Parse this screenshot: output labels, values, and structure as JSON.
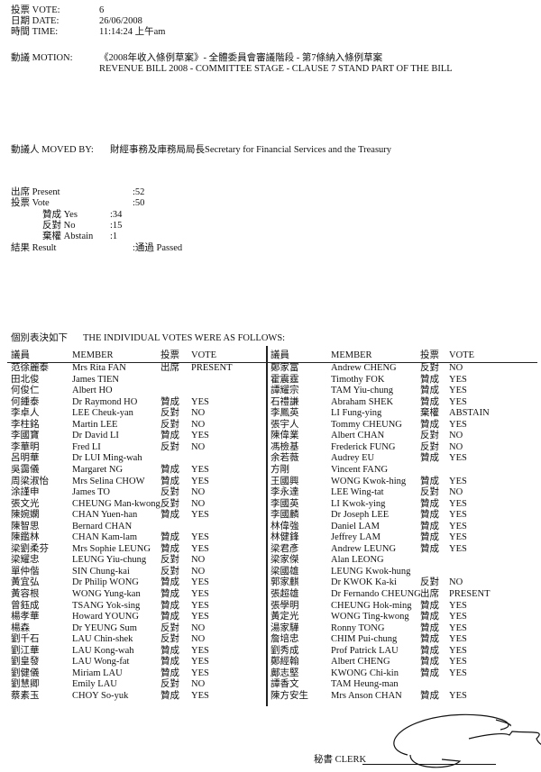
{
  "header": {
    "vote_label": "投票 VOTE:",
    "vote_value": "6",
    "date_label": "日期 DATE:",
    "date_value": "26/06/2008",
    "time_label": "時間 TIME:",
    "time_value": "11:14:24 上午am",
    "motion_label": "動議 MOTION:",
    "motion_cn": "《2008年收入條例草案》- 全體委員會審議階段 - 第7條納入條例草案",
    "motion_en": "REVENUE BILL 2008 - COMMITTEE STAGE - CLAUSE 7 STAND PART OF THE BILL",
    "moved_by_label": "動議人 MOVED BY:",
    "moved_by_value": "財經事務及庫務局局長Secretary for Financial Services and the Treasury"
  },
  "summary": {
    "present_label": "出席 Present",
    "present_value": ":52",
    "vote_label": "投票 Vote",
    "vote_value": ":50",
    "yes_label": "贊成 Yes",
    "yes_value": ":34",
    "no_label": "反對 No",
    "no_value": ":15",
    "abstain_label": "棄權 Abstain",
    "abstain_value": ":1",
    "result_label": "結果 Result",
    "result_value": ":通過 Passed"
  },
  "votes": {
    "intro_cn": "個別表決如下",
    "intro_en": "THE INDIVIDUAL VOTES WERE AS FOLLOWS:",
    "columns": {
      "member_cn": "議員",
      "member_en": "MEMBER",
      "vote_cn": "投票",
      "vote_en": "VOTE"
    },
    "left": [
      [
        "范徐麗泰",
        "Mrs Rita FAN",
        "出席",
        "PRESENT"
      ],
      [
        "田北俊",
        "James TIEN",
        "",
        ""
      ],
      [
        "何俊仁",
        "Albert HO",
        "",
        ""
      ],
      [
        "何鍾泰",
        "Dr Raymond HO",
        "贊成",
        "YES"
      ],
      [
        "李卓人",
        "LEE Cheuk-yan",
        "反對",
        "NO"
      ],
      [
        "李柱銘",
        "Martin LEE",
        "反對",
        "NO"
      ],
      [
        "李國寶",
        "Dr David LI",
        "贊成",
        "YES"
      ],
      [
        "李華明",
        "Fred LI",
        "反對",
        "NO"
      ],
      [
        "呂明華",
        "Dr LUI Ming-wah",
        "",
        ""
      ],
      [
        "吳靄儀",
        "Margaret NG",
        "贊成",
        "YES"
      ],
      [
        "周梁淑怡",
        "Mrs Selina CHOW",
        "贊成",
        "YES"
      ],
      [
        "涂謹申",
        "James TO",
        "反對",
        "NO"
      ],
      [
        "張文光",
        "CHEUNG Man-kwong",
        "反對",
        "NO"
      ],
      [
        "陳婉嫻",
        "CHAN Yuen-han",
        "贊成",
        "YES"
      ],
      [
        "陳智思",
        "Bernard CHAN",
        "",
        ""
      ],
      [
        "陳鑑林",
        "CHAN Kam-lam",
        "贊成",
        "YES"
      ],
      [
        "梁劉柔芬",
        "Mrs Sophie LEUNG",
        "贊成",
        "YES"
      ],
      [
        "梁耀忠",
        "LEUNG Yiu-chung",
        "反對",
        "NO"
      ],
      [
        "單仲偕",
        "SIN Chung-kai",
        "反對",
        "NO"
      ],
      [
        "黃宜弘",
        "Dr Philip WONG",
        "贊成",
        "YES"
      ],
      [
        "黃容根",
        "WONG Yung-kan",
        "贊成",
        "YES"
      ],
      [
        "曾鈺成",
        "TSANG Yok-sing",
        "贊成",
        "YES"
      ],
      [
        "楊孝華",
        "Howard YOUNG",
        "贊成",
        "YES"
      ],
      [
        "楊森",
        "Dr YEUNG Sum",
        "反對",
        "NO"
      ],
      [
        "劉千石",
        "LAU Chin-shek",
        "反對",
        "NO"
      ],
      [
        "劉江華",
        "LAU Kong-wah",
        "贊成",
        "YES"
      ],
      [
        "劉皇發",
        "LAU Wong-fat",
        "贊成",
        "YES"
      ],
      [
        "劉健儀",
        "Miriam LAU",
        "贊成",
        "YES"
      ],
      [
        "劉慧卿",
        "Emily LAU",
        "反對",
        "NO"
      ],
      [
        "蔡素玉",
        "CHOY So-yuk",
        "贊成",
        "YES"
      ]
    ],
    "right": [
      [
        "鄭家富",
        "Andrew CHENG",
        "反對",
        "NO"
      ],
      [
        "霍震霆",
        "Timothy FOK",
        "贊成",
        "YES"
      ],
      [
        "譚耀宗",
        "TAM Yiu-chung",
        "贊成",
        "YES"
      ],
      [
        "石禮謙",
        "Abraham SHEK",
        "贊成",
        "YES"
      ],
      [
        "李鳳英",
        "LI Fung-ying",
        "棄權",
        "ABSTAIN"
      ],
      [
        "張宇人",
        "Tommy CHEUNG",
        "贊成",
        "YES"
      ],
      [
        "陳偉業",
        "Albert CHAN",
        "反對",
        "NO"
      ],
      [
        "馮檢基",
        "Frederick FUNG",
        "反對",
        "NO"
      ],
      [
        "余若薇",
        "Audrey EU",
        "贊成",
        "YES"
      ],
      [
        "方剛",
        "Vincent FANG",
        "",
        ""
      ],
      [
        "王國興",
        "WONG Kwok-hing",
        "贊成",
        "YES"
      ],
      [
        "李永達",
        "LEE Wing-tat",
        "反對",
        "NO"
      ],
      [
        "李國英",
        "LI Kwok-ying",
        "贊成",
        "YES"
      ],
      [
        "李國麟",
        "Dr Joseph LEE",
        "贊成",
        "YES"
      ],
      [
        "林偉強",
        "Daniel LAM",
        "贊成",
        "YES"
      ],
      [
        "林健鋒",
        "Jeffrey LAM",
        "贊成",
        "YES"
      ],
      [
        "梁君彥",
        "Andrew LEUNG",
        "贊成",
        "YES"
      ],
      [
        "梁家傑",
        "Alan LEONG",
        "",
        ""
      ],
      [
        "梁國雄",
        "LEUNG Kwok-hung",
        "",
        ""
      ],
      [
        "郭家麒",
        "Dr KWOK Ka-ki",
        "反對",
        "NO"
      ],
      [
        "張超雄",
        "Dr Fernando CHEUNG",
        "出席",
        "PRESENT"
      ],
      [
        "張學明",
        "CHEUNG Hok-ming",
        "贊成",
        "YES"
      ],
      [
        "黃定光",
        "WONG Ting-kwong",
        "贊成",
        "YES"
      ],
      [
        "湯家驊",
        "Ronny TONG",
        "贊成",
        "YES"
      ],
      [
        "詹培忠",
        "CHIM Pui-chung",
        "贊成",
        "YES"
      ],
      [
        "劉秀成",
        "Prof Patrick LAU",
        "贊成",
        "YES"
      ],
      [
        "鄭經翰",
        "Albert CHENG",
        "贊成",
        "YES"
      ],
      [
        "鄺志堅",
        "KWONG Chi-kin",
        "贊成",
        "YES"
      ],
      [
        "譚香文",
        "TAM Heung-man",
        "",
        ""
      ],
      [
        "陳方安生",
        "Mrs Anson CHAN",
        "贊成",
        "YES"
      ]
    ]
  },
  "footer": {
    "clerk_label": "秘書 CLERK"
  }
}
